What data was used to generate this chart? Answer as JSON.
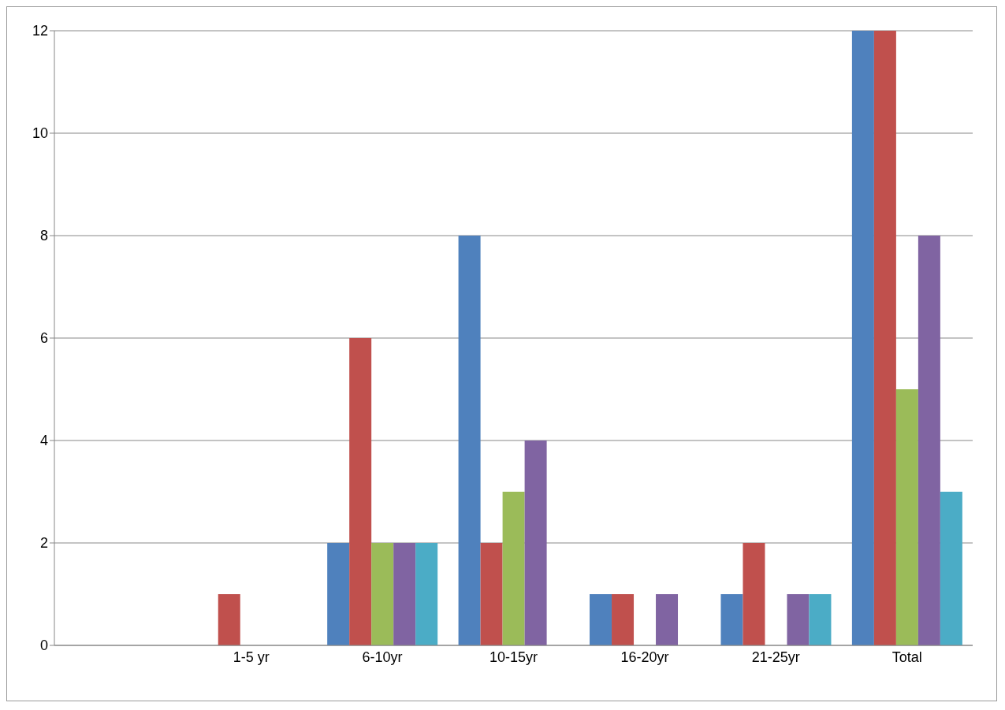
{
  "chart_data": {
    "type": "bar",
    "categories": [
      null,
      "1-5 yr",
      "6-10yr",
      "10-15yr",
      "16-20yr",
      "21-25yr",
      "Total"
    ],
    "series": [
      {
        "color": "#4f81bd",
        "values": [
          0,
          0,
          2,
          8,
          1,
          1,
          12
        ]
      },
      {
        "color": "#c0504d",
        "values": [
          0,
          1,
          6,
          2,
          1,
          2,
          12
        ]
      },
      {
        "color": "#9bbb59",
        "values": [
          0,
          0,
          2,
          3,
          0,
          0,
          5
        ]
      },
      {
        "color": "#8064a2",
        "values": [
          0,
          0,
          2,
          4,
          1,
          1,
          8
        ]
      },
      {
        "color": "#4bacc6",
        "values": [
          0,
          0,
          2,
          0,
          0,
          1,
          3
        ]
      }
    ],
    "ylim": [
      0,
      12
    ],
    "yticks": [
      0,
      2,
      4,
      6,
      8,
      10,
      12
    ],
    "grid": "y",
    "legend": false
  }
}
